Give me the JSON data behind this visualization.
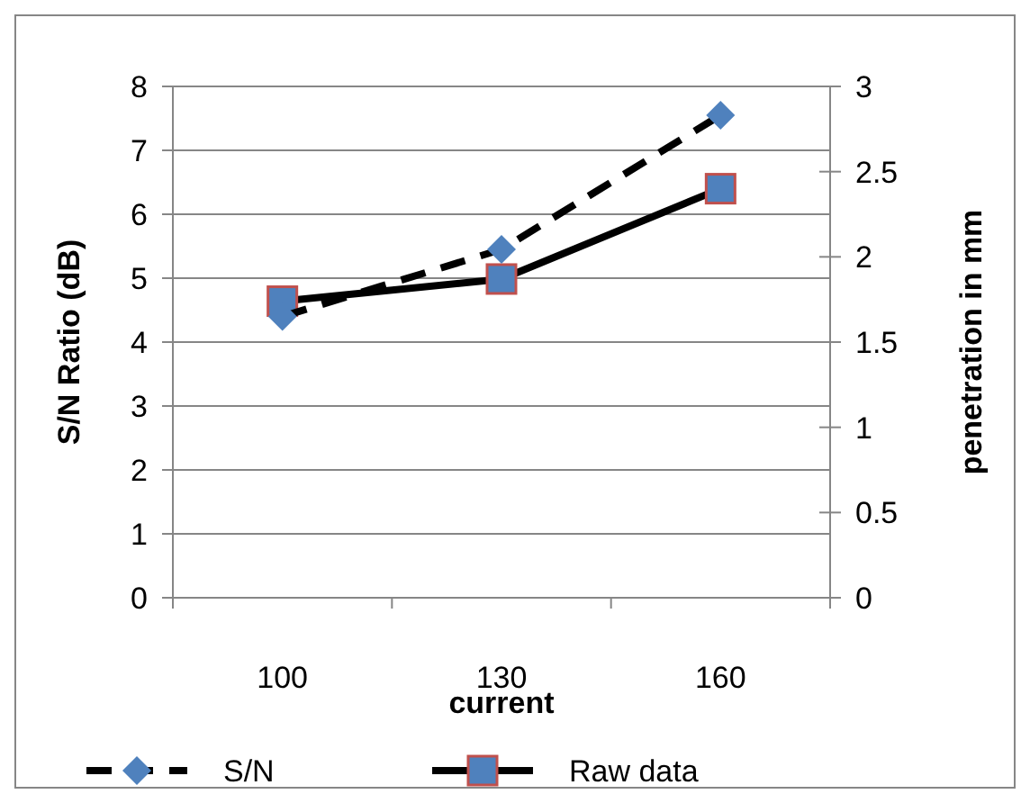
{
  "chart_data": {
    "type": "line",
    "xlabel": "current",
    "ylabel": "S/N Ratio (dB)",
    "y2label": "penetration in mm",
    "categories": [
      "100",
      "130",
      "160"
    ],
    "series": [
      {
        "name": "S/N",
        "color": "#4f81bd",
        "values": [
          4.4,
          5.45,
          7.55
        ],
        "marker": "diamond",
        "line_style": "dashed"
      },
      {
        "name": "Raw data",
        "color": "#4f81bd",
        "values": [
          1.74,
          1.87,
          2.4
        ],
        "marker": "square",
        "line_style": "solid",
        "axis": "y2"
      }
    ],
    "ylim": [
      0,
      8
    ],
    "yticks": [
      0,
      1,
      2,
      3,
      4,
      5,
      6,
      7,
      8
    ],
    "y2lim": [
      0,
      3
    ],
    "y2ticks": [
      0,
      0.5,
      1,
      1.5,
      2,
      2.5,
      3
    ],
    "grid": "y",
    "legend": "bottom"
  }
}
